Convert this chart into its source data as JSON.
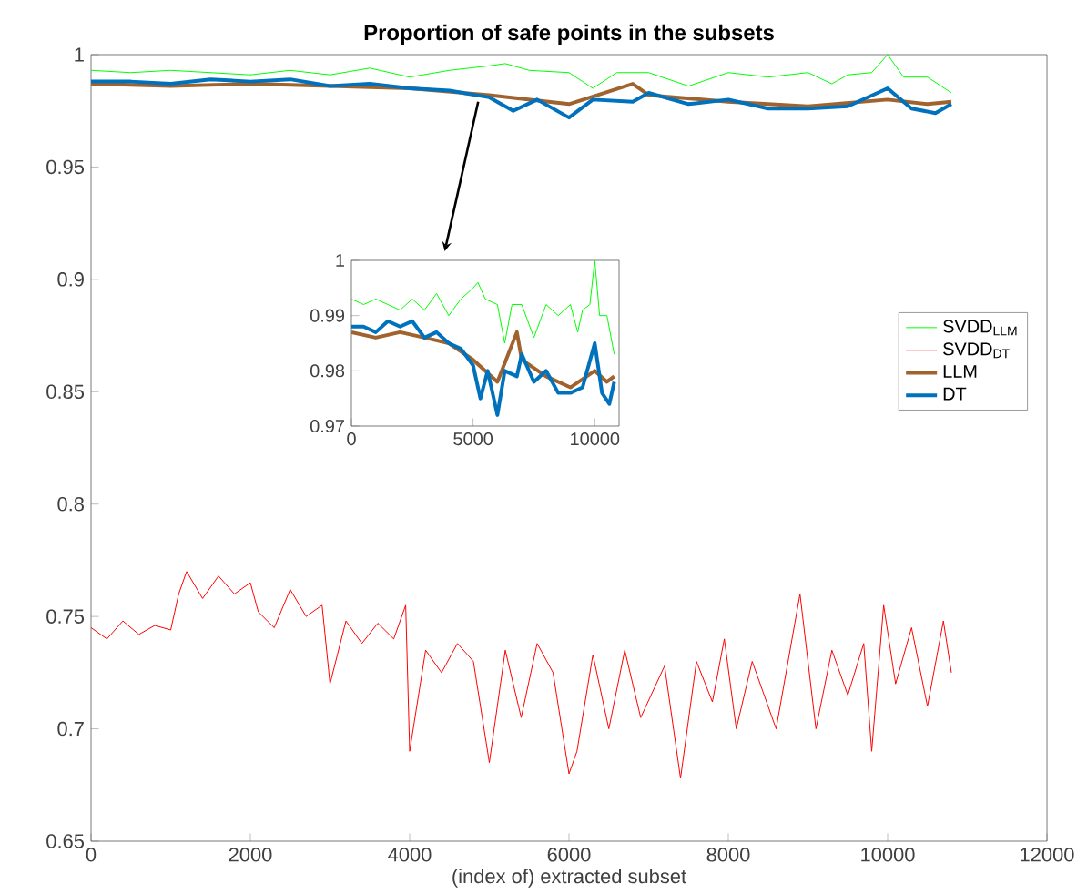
{
  "chart_data": [
    {
      "type": "line",
      "title": "Proportion of safe points in the subsets",
      "xlabel": "(index of) extracted subset",
      "xlim": [
        0,
        12000
      ],
      "ylim": [
        0.65,
        1
      ],
      "xticks": [
        0,
        2000,
        4000,
        6000,
        8000,
        10000,
        12000
      ],
      "yticks": [
        0.65,
        0.7,
        0.75,
        0.8,
        0.85,
        0.9,
        0.95,
        1
      ],
      "legend": "right",
      "grid": false,
      "series": [
        {
          "name": "SVDD$_{LLM}$",
          "color": "#00ff00",
          "x": [
            0,
            500,
            1000,
            1500,
            2000,
            2500,
            3000,
            3500,
            4000,
            4500,
            5000,
            5200,
            5500,
            6000,
            6300,
            6600,
            7000,
            7500,
            8000,
            8500,
            9000,
            9300,
            9500,
            9800,
            10000,
            10200,
            10500,
            10800
          ],
          "values": [
            0.993,
            0.992,
            0.993,
            0.992,
            0.991,
            0.993,
            0.991,
            0.994,
            0.99,
            0.993,
            0.995,
            0.996,
            0.993,
            0.992,
            0.985,
            0.992,
            0.992,
            0.986,
            0.992,
            0.99,
            0.992,
            0.987,
            0.991,
            0.992,
            1.0,
            0.99,
            0.99,
            0.983
          ]
        },
        {
          "name": "SVDD$_{DT}$",
          "color": "#ff0000",
          "x": [
            0,
            200,
            400,
            600,
            800,
            1000,
            1100,
            1200,
            1400,
            1600,
            1800,
            2000,
            2100,
            2300,
            2500,
            2700,
            2900,
            3000,
            3200,
            3400,
            3600,
            3800,
            3950,
            4000,
            4200,
            4400,
            4600,
            4800,
            5000,
            5200,
            5400,
            5600,
            5800,
            6000,
            6100,
            6300,
            6500,
            6700,
            6900,
            7200,
            7400,
            7600,
            7800,
            7950,
            8100,
            8300,
            8600,
            8900,
            9100,
            9300,
            9500,
            9700,
            9800,
            9950,
            10100,
            10300,
            10500,
            10700,
            10800
          ],
          "values": [
            0.745,
            0.74,
            0.748,
            0.742,
            0.746,
            0.744,
            0.76,
            0.77,
            0.758,
            0.768,
            0.76,
            0.765,
            0.752,
            0.745,
            0.762,
            0.75,
            0.755,
            0.72,
            0.748,
            0.738,
            0.747,
            0.74,
            0.755,
            0.69,
            0.735,
            0.725,
            0.738,
            0.73,
            0.685,
            0.735,
            0.705,
            0.738,
            0.725,
            0.68,
            0.69,
            0.733,
            0.7,
            0.735,
            0.705,
            0.728,
            0.678,
            0.73,
            0.712,
            0.74,
            0.7,
            0.73,
            0.7,
            0.76,
            0.7,
            0.735,
            0.715,
            0.738,
            0.69,
            0.755,
            0.72,
            0.745,
            0.71,
            0.748,
            0.725
          ]
        },
        {
          "name": "LLM",
          "color": "#a0632d",
          "x": [
            0,
            1000,
            2000,
            3000,
            4000,
            5000,
            6000,
            6800,
            7000,
            8000,
            9000,
            10000,
            10500,
            10800
          ],
          "values": [
            0.987,
            0.986,
            0.987,
            0.986,
            0.985,
            0.982,
            0.978,
            0.987,
            0.982,
            0.979,
            0.977,
            0.98,
            0.978,
            0.979
          ]
        },
        {
          "name": "DT",
          "color": "#0072bd",
          "x": [
            0,
            500,
            1000,
            1500,
            2000,
            2500,
            3000,
            3500,
            4000,
            4500,
            5000,
            5300,
            5600,
            6000,
            6300,
            6800,
            7000,
            7500,
            8000,
            8500,
            9000,
            9500,
            10000,
            10300,
            10600,
            10800
          ],
          "values": [
            0.988,
            0.988,
            0.987,
            0.989,
            0.988,
            0.989,
            0.986,
            0.987,
            0.985,
            0.984,
            0.981,
            0.975,
            0.98,
            0.972,
            0.98,
            0.979,
            0.983,
            0.978,
            0.98,
            0.976,
            0.976,
            0.977,
            0.985,
            0.976,
            0.974,
            0.978
          ]
        }
      ]
    },
    {
      "type": "line",
      "xlim": [
        0,
        11000
      ],
      "ylim": [
        0.97,
        1
      ],
      "xticks": [
        0,
        5000,
        10000
      ],
      "yticks": [
        0.97,
        0.98,
        0.99,
        1
      ],
      "legend": false,
      "grid": false,
      "series": [
        {
          "color": "#00ff00",
          "x": [
            0,
            500,
            1000,
            1500,
            2000,
            2500,
            3000,
            3500,
            4000,
            4500,
            5000,
            5200,
            5500,
            6000,
            6300,
            6600,
            7000,
            7500,
            8000,
            8500,
            9000,
            9300,
            9500,
            9800,
            10000,
            10200,
            10500,
            10800
          ],
          "values": [
            0.993,
            0.992,
            0.993,
            0.992,
            0.991,
            0.993,
            0.991,
            0.994,
            0.99,
            0.993,
            0.995,
            0.996,
            0.993,
            0.992,
            0.985,
            0.992,
            0.992,
            0.986,
            0.992,
            0.99,
            0.992,
            0.987,
            0.991,
            0.992,
            1.0,
            0.99,
            0.99,
            0.983
          ]
        },
        {
          "color": "#a0632d",
          "x": [
            0,
            1000,
            2000,
            3000,
            4000,
            5000,
            6000,
            6800,
            7000,
            8000,
            9000,
            10000,
            10500,
            10800
          ],
          "values": [
            0.987,
            0.986,
            0.987,
            0.986,
            0.985,
            0.982,
            0.978,
            0.987,
            0.982,
            0.979,
            0.977,
            0.98,
            0.978,
            0.979
          ]
        },
        {
          "color": "#0072bd",
          "x": [
            0,
            500,
            1000,
            1500,
            2000,
            2500,
            3000,
            3500,
            4000,
            4500,
            5000,
            5300,
            5600,
            6000,
            6300,
            6800,
            7000,
            7500,
            8000,
            8500,
            9000,
            9500,
            10000,
            10300,
            10600,
            10800
          ],
          "values": [
            0.988,
            0.988,
            0.987,
            0.989,
            0.988,
            0.989,
            0.986,
            0.987,
            0.985,
            0.984,
            0.981,
            0.975,
            0.98,
            0.972,
            0.98,
            0.979,
            0.983,
            0.978,
            0.98,
            0.976,
            0.976,
            0.977,
            0.985,
            0.976,
            0.974,
            0.978
          ]
        }
      ]
    }
  ]
}
